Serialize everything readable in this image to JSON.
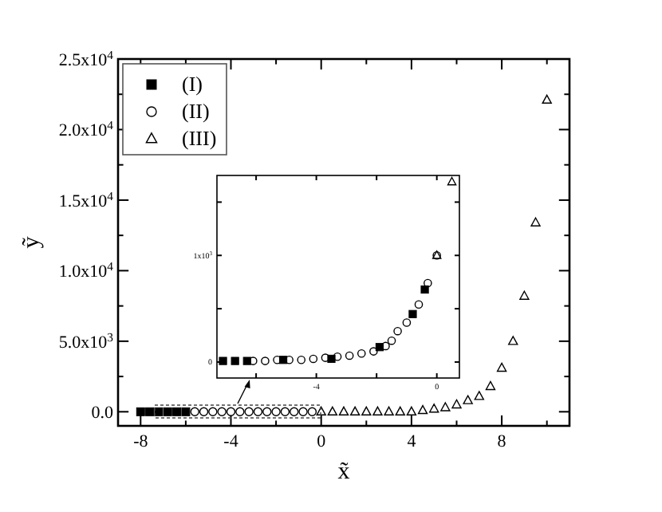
{
  "chart_data": [
    {
      "type": "scatter",
      "xlabel": "x̃",
      "ylabel": "ỹ",
      "xlim": [
        -9,
        11
      ],
      "ylim": [
        -1000,
        25000
      ],
      "xticks": [
        -8,
        -4,
        0,
        4,
        8
      ],
      "yticks": [
        {
          "value": 0,
          "label": "0.0"
        },
        {
          "value": 5000,
          "label": "5.0x10$^{3}$"
        },
        {
          "value": 10000,
          "label": "1.0x10$^{4}$"
        },
        {
          "value": 15000,
          "label": "1.5x10$^{4}$"
        },
        {
          "value": 20000,
          "label": "2.0x10$^{4}$"
        },
        {
          "value": 25000,
          "label": "2.5x10$^{4}$"
        }
      ],
      "grid": false,
      "legend": "top left",
      "series": [
        {
          "name": "(I)",
          "color": "#000000",
          "marker": "square",
          "x": [
            -8,
            -7.6,
            -7.2,
            -6.8,
            -6.4,
            -6.0
          ],
          "values": [
            0,
            0,
            0,
            0,
            0,
            0
          ]
        },
        {
          "name": "(II)",
          "color": "#000000",
          "marker": "circle",
          "x": [
            -5.6,
            -5.2,
            -4.8,
            -4.4,
            -4.0,
            -3.6,
            -3.2,
            -2.8,
            -2.4,
            -2.0,
            -1.6,
            -1.2,
            -0.8,
            -0.4
          ],
          "values": [
            0,
            0,
            0,
            0,
            0,
            0,
            0,
            0,
            0,
            0,
            0,
            0,
            0,
            0
          ]
        },
        {
          "name": "(III)",
          "color": "#000000",
          "marker": "triangle",
          "x": [
            0,
            0.5,
            1,
            1.5,
            2,
            2.5,
            3,
            3.5,
            4,
            4.5,
            5,
            5.5,
            6,
            6.5,
            7,
            7.5,
            8,
            8.5,
            9,
            9.5,
            10
          ],
          "values": [
            0,
            0,
            0,
            0,
            0,
            0,
            0,
            0,
            0,
            100,
            200,
            300,
            500,
            800,
            1100,
            1800,
            3100,
            5000,
            8200,
            13400,
            22100
          ]
        }
      ]
    },
    {
      "type": "scatter",
      "xlim": [
        -7.3,
        0.75
      ],
      "ylim": [
        -150,
        1750
      ],
      "xticks": [
        {
          "value": -6,
          "label": null
        },
        -4,
        {
          "value": -2,
          "label": null
        },
        0
      ],
      "yticks": [
        0,
        {
          "value": 500,
          "label": null
        },
        {
          "value": 1000,
          "label": "1x10$^{3}$"
        },
        {
          "value": 1500,
          "label": null
        }
      ],
      "grid": false,
      "legend": false,
      "series": [
        {
          "color": "#000000",
          "marker": "square",
          "x": [
            -7.1,
            -6.7,
            -6.3,
            -5.1,
            -3.5,
            -1.9,
            -0.8,
            -0.4
          ],
          "values": [
            10,
            10,
            10,
            20,
            30,
            140,
            450,
            680
          ]
        },
        {
          "color": "#000000",
          "marker": "circle",
          "x": [
            -6.1,
            -5.7,
            -5.3,
            -4.9,
            -4.5,
            -4.1,
            -3.7,
            -3.3,
            -2.9,
            -2.5,
            -2.1,
            -1.7,
            -1.5,
            -1.3,
            -1.0,
            -0.6,
            -0.3,
            0
          ],
          "values": [
            10,
            10,
            20,
            20,
            20,
            30,
            40,
            50,
            60,
            80,
            100,
            150,
            200,
            290,
            370,
            540,
            740,
            1000
          ]
        },
        {
          "color": "#000000",
          "marker": "triangle",
          "x": [
            0,
            0.5
          ],
          "values": [
            1000,
            1690
          ]
        }
      ]
    }
  ]
}
